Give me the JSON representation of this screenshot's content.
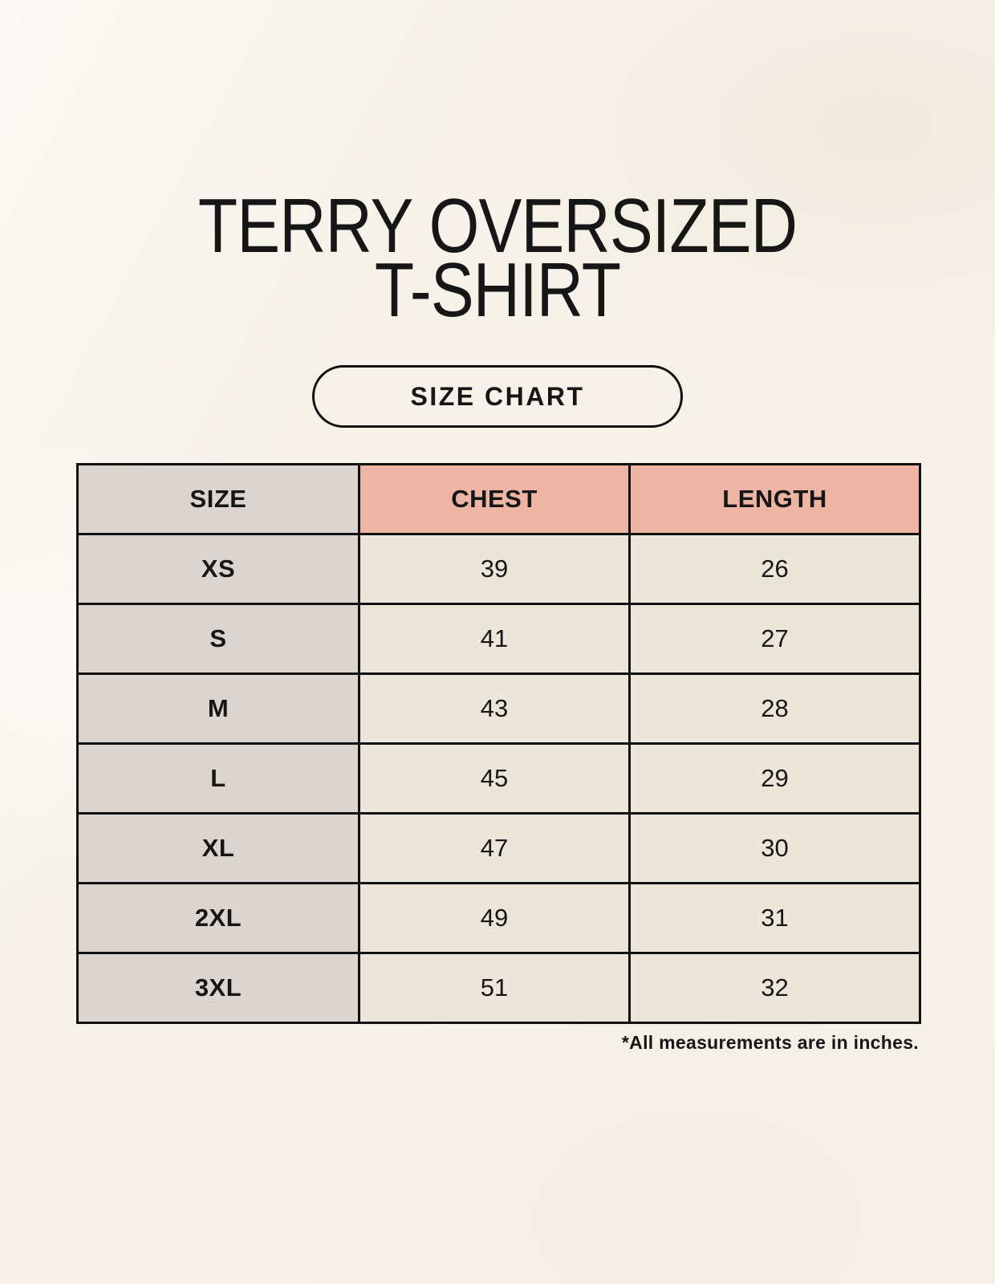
{
  "page": {
    "title_line1": "TERRY OVERSIZED",
    "title_line2": "T-SHIRT",
    "size_chart_button_label": "SIZE CHART",
    "footnote": "*All measurements are in inches."
  },
  "colors": {
    "page_bg": "#f6f2e9",
    "header_pink": "#efb5a4",
    "size_gray": "#dcd5cf",
    "cell_cream": "#ece5d9",
    "line_black": "#101010",
    "text_black": "#161616"
  },
  "chart_data": {
    "type": "table",
    "title": "TERRY OVERSIZED T-SHIRT",
    "subtitle": "SIZE CHART",
    "columns": [
      "SIZE",
      "CHEST",
      "LENGTH"
    ],
    "rows": [
      [
        "XS",
        "39",
        "26"
      ],
      [
        "S",
        "41",
        "27"
      ],
      [
        "M",
        "43",
        "28"
      ],
      [
        "L",
        "45",
        "29"
      ],
      [
        "XL",
        "47",
        "30"
      ],
      [
        "2XL",
        "49",
        "31"
      ],
      [
        "3XL",
        "51",
        "32"
      ]
    ],
    "units_note": "*All measurements are in inches."
  }
}
